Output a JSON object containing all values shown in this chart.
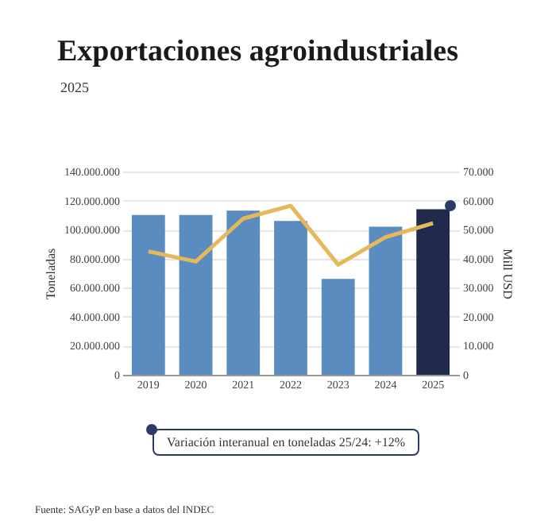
{
  "chart_data": {
    "type": "bar",
    "title": "Exportaciones agroindustriales",
    "subtitle": "2025",
    "categories": [
      "2019",
      "2020",
      "2021",
      "2022",
      "2023",
      "2024",
      "2025"
    ],
    "series": [
      {
        "colors": [
          "#5b8cc0",
          "#5b8cc0",
          "#5b8cc0",
          "#5b8cc0",
          "#5b8cc0",
          "#5b8cc0",
          "#1f2a4d"
        ],
        "values": [
          110000000,
          110000000,
          113000000,
          106000000,
          66000000,
          102000000,
          114000000
        ]
      },
      {
        "type": "line",
        "axis": "y2",
        "color": "#e6b85c",
        "values": [
          42500,
          39000,
          53800,
          58200,
          37900,
          47400,
          52200
        ]
      }
    ],
    "ylabel": "Toneladas",
    "y2label": "Mill USD",
    "ylim": [
      0,
      140000000
    ],
    "yticks": [
      {
        "value": 0,
        "label": "0"
      },
      {
        "value": 20000000,
        "label": "20.000.000"
      },
      {
        "value": 40000000,
        "label": "40.000.000"
      },
      {
        "value": 60000000,
        "label": "60.000.000"
      },
      {
        "value": 80000000,
        "label": "80.000.000"
      },
      {
        "value": 100000000,
        "label": "100.000.000"
      },
      {
        "value": 120000000,
        "label": "120.000.000"
      },
      {
        "value": 140000000,
        "label": "140.000.000"
      }
    ],
    "y2lim": [
      0,
      70000
    ],
    "y2ticks": [
      {
        "value": 0,
        "label": "0"
      },
      {
        "value": 10000,
        "label": "10.000"
      },
      {
        "value": 20000,
        "label": "20.000"
      },
      {
        "value": 30000,
        "label": "30.000"
      },
      {
        "value": 40000,
        "label": "40.000"
      },
      {
        "value": 50000,
        "label": "50.000"
      },
      {
        "value": 60000,
        "label": "60.000"
      },
      {
        "value": 70000,
        "label": "70.000"
      }
    ],
    "grid": "y",
    "annotations": [
      "Variación interanual en toneladas 25/24: +12%",
      "Fuente: SAGyP en base a datos del INDEC"
    ]
  }
}
